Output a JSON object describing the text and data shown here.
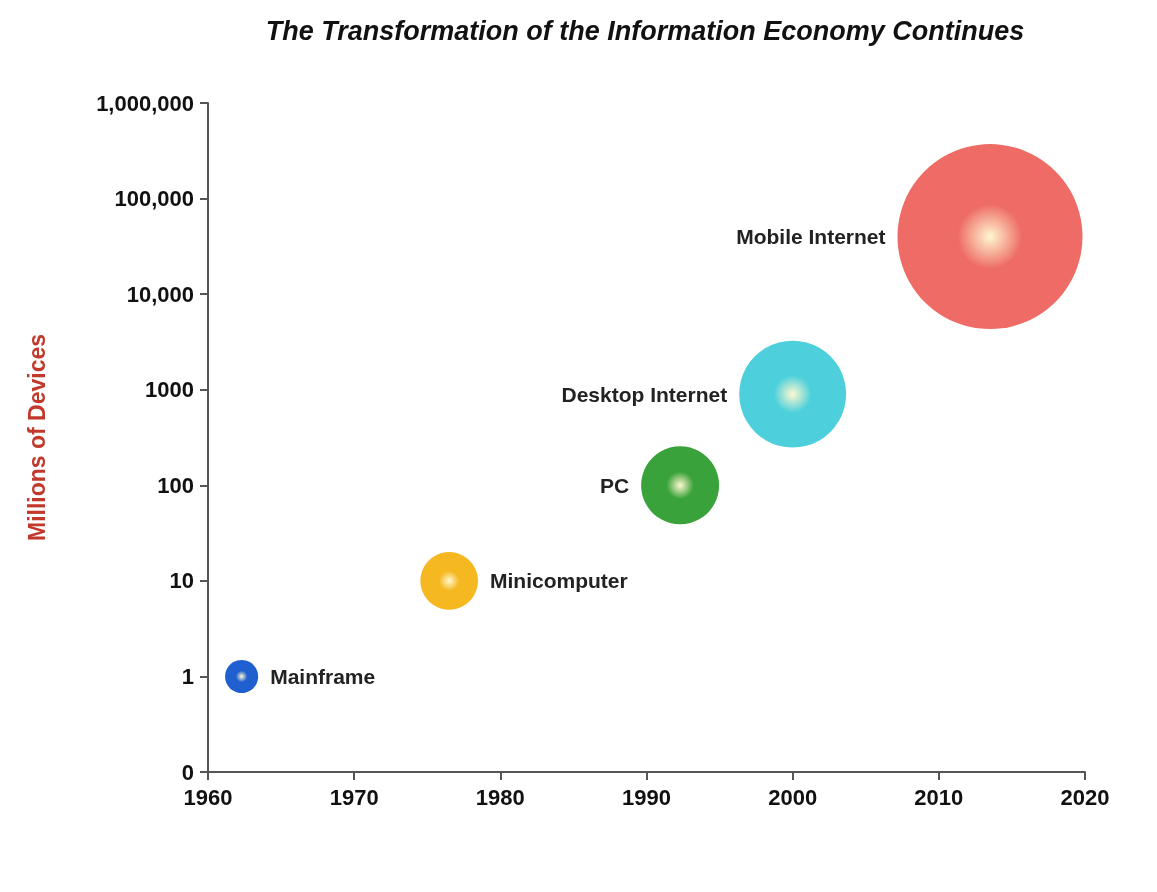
{
  "chart_data": {
    "type": "bubble",
    "title": "The Transformation of the Information Economy Continues",
    "ylabel": "Millions of Devices",
    "log": "y",
    "xlim": [
      1960,
      2020
    ],
    "xticks": [
      1960,
      1970,
      1980,
      1990,
      2000,
      2010,
      2020
    ],
    "ylim": [
      0.1,
      1000000
    ],
    "yticks": [
      {
        "value": 0.1,
        "label": "0"
      },
      1,
      10,
      100,
      1000,
      {
        "value": 10000,
        "label": "10,000"
      },
      {
        "value": 100000,
        "label": "100,000"
      },
      {
        "value": 1000000,
        "label": "1,000,000"
      }
    ],
    "grid": false,
    "legend": false,
    "series": [
      {
        "name": "Mainframe",
        "color": "#1f5fcf",
        "x": [
          1962.3
        ],
        "values": [
          1
        ],
        "sizes": [
          0.032
        ]
      },
      {
        "name": "Minicomputer",
        "color": "#f5b820",
        "x": [
          1976.5
        ],
        "values": [
          10
        ],
        "sizes": [
          0.097
        ]
      },
      {
        "name": "PC",
        "color": "#3aa23a",
        "x": [
          1992.3
        ],
        "values": [
          100
        ],
        "sizes": [
          0.178
        ]
      },
      {
        "name": "Desktop Internet",
        "color": "#4dd0dc",
        "x": [
          2000
        ],
        "values": [
          900
        ],
        "sizes": [
          0.334
        ]
      },
      {
        "name": "Mobile Internet",
        "color": "#ee6b66",
        "x": [
          2013.5
        ],
        "values": [
          40000
        ],
        "sizes": [
          1
        ]
      }
    ]
  }
}
